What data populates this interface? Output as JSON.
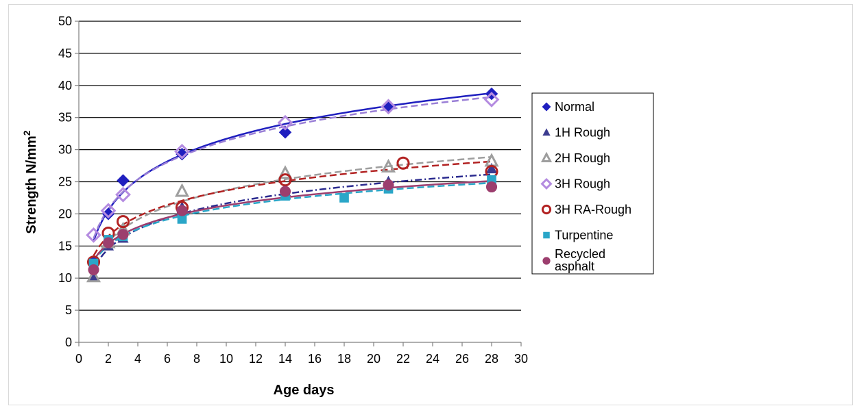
{
  "chart_data": {
    "type": "scatter",
    "title": "",
    "xlabel": "Age days",
    "ylabel": "Strength N/mm",
    "ylabel_superscript": "2",
    "xlim": [
      0,
      30
    ],
    "ylim": [
      0,
      50
    ],
    "x_ticks": [
      "0",
      "2",
      "4",
      "6",
      "8",
      "10",
      "12",
      "14",
      "16",
      "18",
      "20",
      "22",
      "24",
      "26",
      "28",
      "30"
    ],
    "y_ticks": [
      "0",
      "5",
      "10",
      "15",
      "20",
      "25",
      "30",
      "35",
      "40",
      "45",
      "50"
    ],
    "grid": "horizontal",
    "legend_position": "right",
    "series": [
      {
        "name": "Normal",
        "marker": "diamond-filled",
        "color": "#1f1fbf",
        "line_style": "solid",
        "line_color": "#1f1fbf",
        "points": [
          [
            1,
            12.5
          ],
          [
            2,
            20
          ],
          [
            3,
            25.2
          ],
          [
            7,
            29.3
          ],
          [
            14,
            32.7
          ],
          [
            21,
            36.5
          ],
          [
            28,
            38.7
          ]
        ],
        "trend": {
          "a": 15.8,
          "b": 6.9
        }
      },
      {
        "name": "1H Rough",
        "marker": "triangle-filled",
        "color": "#3b3b8f",
        "line_style": "dashdot",
        "line_color": "#2b2b8f",
        "points": [
          [
            1,
            10.3
          ],
          [
            2,
            15
          ],
          [
            3,
            16.2
          ],
          [
            7,
            21
          ],
          [
            14,
            23.5
          ],
          [
            21,
            25
          ],
          [
            28,
            27
          ]
        ],
        "trend": {
          "a": 11.5,
          "b": 4.4
        }
      },
      {
        "name": "2H Rough",
        "marker": "triangle-open",
        "color": "#9e9e9e",
        "line_style": "dashed",
        "line_color": "#9e9e9e",
        "points": [
          [
            1,
            10.2
          ],
          [
            2,
            15.5
          ],
          [
            3,
            17.5
          ],
          [
            7,
            23.5
          ],
          [
            14,
            26.3
          ],
          [
            21,
            27.3
          ],
          [
            28,
            28.2
          ]
        ],
        "trend": {
          "a": 12.2,
          "b": 5.0
        }
      },
      {
        "name": "3H Rough",
        "marker": "diamond-open",
        "color": "#b48be0",
        "line_style": "dashed",
        "line_color": "#9a7fd6",
        "points": [
          [
            1,
            16.7
          ],
          [
            2,
            20.5
          ],
          [
            3,
            23
          ],
          [
            7,
            29.7
          ],
          [
            14,
            34.2
          ],
          [
            21,
            36.7
          ],
          [
            28,
            37.8
          ]
        ],
        "trend": {
          "a": 16.2,
          "b": 6.6
        }
      },
      {
        "name": "3H RA-Rough",
        "marker": "circle-open",
        "color": "#b22222",
        "line_style": "dashed",
        "line_color": "#b22222",
        "points": [
          [
            1,
            12.5
          ],
          [
            2,
            17
          ],
          [
            3,
            18.8
          ],
          [
            7,
            21
          ],
          [
            14,
            25.3
          ],
          [
            22,
            27.9
          ],
          [
            28,
            26.6
          ]
        ],
        "trend": {
          "a": 13.5,
          "b": 4.4
        }
      },
      {
        "name": "Turpentine",
        "marker": "square-filled",
        "color": "#2aa6c8",
        "line_style": "dashed",
        "line_color": "#2aa6c8",
        "points": [
          [
            1,
            12.3
          ],
          [
            2,
            16
          ],
          [
            3,
            16.5
          ],
          [
            7,
            19.2
          ],
          [
            14,
            22.8
          ],
          [
            18,
            22.5
          ],
          [
            21,
            23.9
          ],
          [
            28,
            25.3
          ]
        ],
        "trend": {
          "a": 12.5,
          "b": 3.7
        }
      },
      {
        "name": "Recycled asphalt",
        "marker": "circle-filled",
        "color": "#9c3e6e",
        "line_style": "solid",
        "line_color": "#9c3e6e",
        "points": [
          [
            1,
            11.3
          ],
          [
            2,
            15.5
          ],
          [
            3,
            16.8
          ],
          [
            7,
            20.5
          ],
          [
            14,
            23.5
          ],
          [
            21,
            24.5
          ],
          [
            28,
            24.2
          ]
        ],
        "trend": {
          "a": 12.8,
          "b": 3.7
        }
      }
    ]
  }
}
